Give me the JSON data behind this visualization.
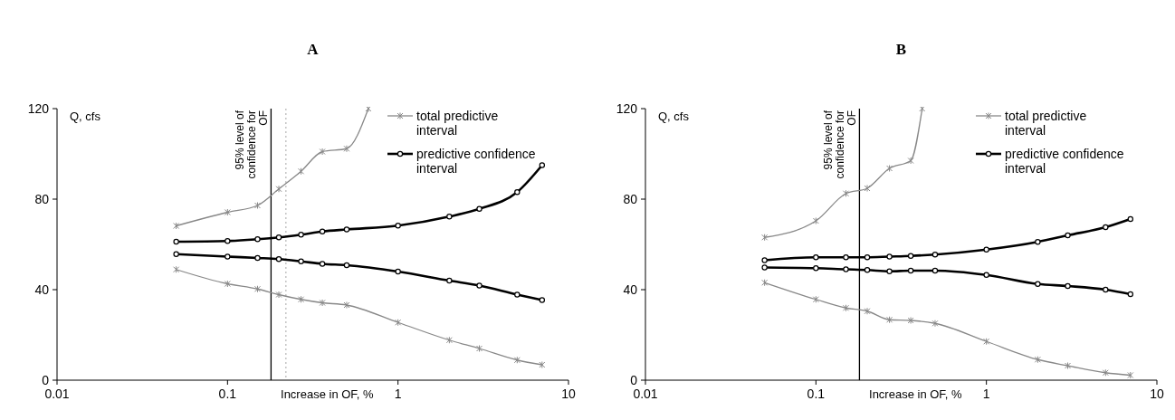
{
  "chart_data": [
    {
      "type": "line",
      "title": "A",
      "xlabel": "Increase in OF, %",
      "ylabel": "Q, cfs",
      "log": "x",
      "xlim": [
        0.01,
        10
      ],
      "xticks": [
        0.01,
        0.1,
        1,
        10
      ],
      "ylim": [
        0,
        120
      ],
      "yticks": [
        0,
        40,
        80,
        120
      ],
      "grid": false,
      "legend": "top right",
      "x": [
        0.05,
        0.1,
        0.15,
        0.2,
        0.27,
        0.36,
        0.5,
        1,
        2,
        3,
        5,
        7
      ],
      "series": [
        {
          "name": "total predictive interval",
          "color": "#888888",
          "marker": "cross",
          "x": [
            0.05,
            0.1,
            0.15,
            0.2,
            0.27,
            0.36,
            0.5,
            0.67
          ],
          "values": [
            68.2,
            74.2,
            77.2,
            84.5,
            92.3,
            101,
            102.3,
            120
          ]
        },
        {
          "name": "predictive confidence interval",
          "color": "#000000",
          "marker": "circle",
          "values": [
            61.2,
            61.5,
            62.3,
            63.1,
            64.3,
            65.7,
            66.6,
            68.3,
            72.3,
            75.7,
            83.1,
            95
          ]
        },
        {
          "color": "#000000",
          "marker": "circle",
          "values": [
            55.7,
            54.6,
            54,
            53.5,
            52.5,
            51.4,
            50.8,
            48,
            44,
            41.8,
            37.8,
            35.4
          ]
        },
        {
          "color": "#888888",
          "marker": "cross",
          "values": [
            48.9,
            42.6,
            40.3,
            37.8,
            35.7,
            34.2,
            33.2,
            25.5,
            17.7,
            14,
            8.9,
            6.8
          ]
        }
      ],
      "ref_lines": [
        {
          "axis": "x",
          "value": 0.18,
          "label": "95% level of confidence for OF",
          "color": "#000000"
        },
        {
          "axis": "x",
          "value": 0.22,
          "color": "#bbbbbb",
          "line_style": "dotted"
        }
      ]
    },
    {
      "type": "line",
      "title": "B",
      "xlabel": "Increase in OF, %",
      "ylabel": "Q, cfs",
      "log": "x",
      "xlim": [
        0.01,
        10
      ],
      "xticks": [
        0.01,
        0.1,
        1,
        10
      ],
      "ylim": [
        0,
        120
      ],
      "yticks": [
        0,
        40,
        80,
        120
      ],
      "grid": false,
      "legend": "top right",
      "x": [
        0.05,
        0.1,
        0.15,
        0.2,
        0.27,
        0.36,
        0.5,
        1,
        2,
        3,
        5,
        7
      ],
      "series": [
        {
          "name": "total predictive interval",
          "color": "#888888",
          "marker": "cross",
          "x": [
            0.05,
            0.1,
            0.15,
            0.2,
            0.27,
            0.36,
            0.42
          ],
          "values": [
            63.1,
            70.4,
            82.5,
            84.8,
            93.6,
            97,
            120
          ]
        },
        {
          "name": "predictive confidence interval",
          "color": "#000000",
          "marker": "circle",
          "values": [
            53,
            54.3,
            54.3,
            54.3,
            54.6,
            54.9,
            55.5,
            57.7,
            61.1,
            64,
            67.6,
            71.2
          ]
        },
        {
          "color": "#000000",
          "marker": "circle",
          "values": [
            49.8,
            49.5,
            49,
            48.7,
            48.1,
            48.4,
            48.4,
            46.5,
            42.5,
            41.6,
            40,
            38
          ]
        },
        {
          "color": "#888888",
          "marker": "cross",
          "values": [
            43.1,
            35.7,
            31.9,
            30.5,
            26.7,
            26.4,
            25.1,
            17.1,
            9.1,
            6.4,
            3.3,
            2.2
          ]
        }
      ],
      "ref_lines": [
        {
          "axis": "x",
          "value": 0.18,
          "label": "95% level of confidence for OF",
          "color": "#000000"
        }
      ]
    }
  ]
}
